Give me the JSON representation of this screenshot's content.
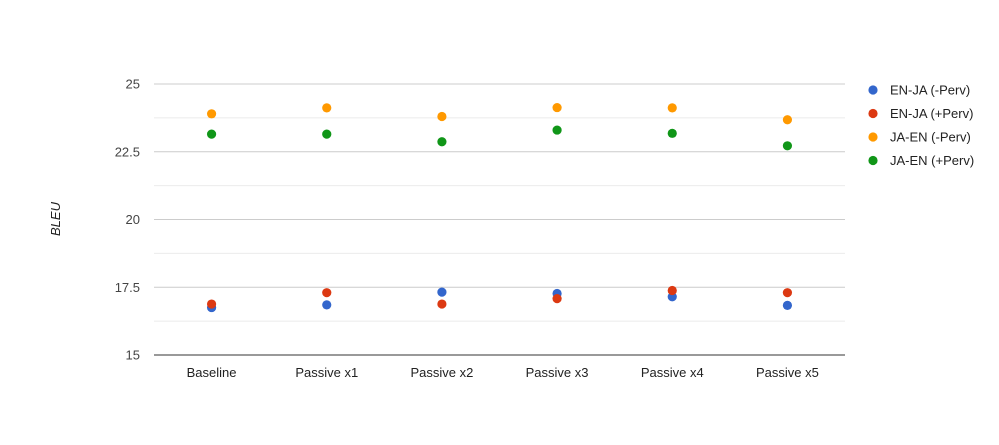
{
  "chart_data": {
    "type": "scatter",
    "title": "",
    "xlabel": "",
    "ylabel": "BLEU",
    "categories": [
      "Baseline",
      "Passive x1",
      "Passive x2",
      "Passive x3",
      "Passive x4",
      "Passive x5"
    ],
    "ylim": [
      15,
      25
    ],
    "yticks": [
      "15",
      "17.5",
      "20",
      "22.5",
      "25"
    ],
    "grid": true,
    "legend_position": "right",
    "series": [
      {
        "name": "EN-JA (-Perv)",
        "color": "#3366cc",
        "values": [
          16.75,
          16.85,
          17.32,
          17.27,
          17.15,
          16.83
        ]
      },
      {
        "name": "EN-JA (+Perv)",
        "color": "#dc3912",
        "values": [
          16.88,
          17.3,
          16.88,
          17.08,
          17.38,
          17.3
        ]
      },
      {
        "name": "JA-EN (-Perv)",
        "color": "#ff9900",
        "values": [
          23.9,
          24.12,
          23.8,
          24.13,
          24.12,
          23.68
        ]
      },
      {
        "name": "JA-EN (+Perv)",
        "color": "#109618",
        "values": [
          23.15,
          23.15,
          22.87,
          23.3,
          23.18,
          22.72
        ]
      }
    ]
  }
}
